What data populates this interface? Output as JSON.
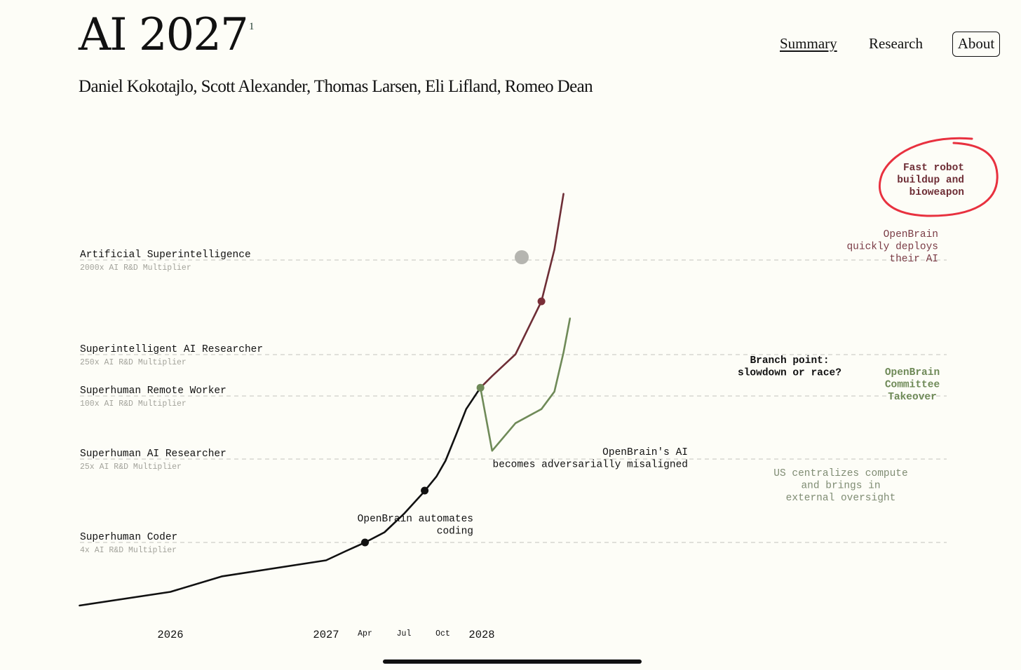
{
  "header": {
    "title": "AI 2027",
    "title_sup": "1",
    "authors": "Daniel Kokotajlo, Scott Alexander, Thomas Larsen, Eli Lifland, Romeo Dean"
  },
  "nav": {
    "summary": "Summary",
    "research": "Research",
    "about": "About"
  },
  "chart_data": {
    "type": "line",
    "x_unit": "months since 2026-01",
    "x_ticks": [
      {
        "label": "2026",
        "x": 0,
        "major": true
      },
      {
        "label": "2027",
        "x": 12,
        "major": true
      },
      {
        "label": "Apr",
        "x": 15,
        "major": false
      },
      {
        "label": "Jul",
        "x": 18,
        "major": false
      },
      {
        "label": "Oct",
        "x": 21,
        "major": false
      },
      {
        "label": "2028",
        "x": 24,
        "major": true
      }
    ],
    "milestones": [
      {
        "name": "Superhuman Coder",
        "sub": "4x AI R&D Multiplier",
        "y": 4
      },
      {
        "name": "Superhuman AI Researcher",
        "sub": "25x AI R&D Multiplier",
        "y": 25
      },
      {
        "name": "Superhuman Remote Worker",
        "sub": "100x AI R&D Multiplier",
        "y": 100
      },
      {
        "name": "Superintelligent AI Researcher",
        "sub": "250x AI R&D Multiplier",
        "y": 250
      },
      {
        "name": "Artificial Superintelligence",
        "sub": "2000x AI R&D Multiplier",
        "y": 2000
      }
    ],
    "series": [
      {
        "key": "main",
        "color": "#111111",
        "points": [
          [
            -7,
            1.0
          ],
          [
            0,
            1.35
          ],
          [
            4,
            1.9
          ],
          [
            12,
            2.7
          ],
          [
            13.5,
            3.3
          ],
          [
            15,
            4.0
          ],
          [
            16.5,
            5.0
          ],
          [
            18,
            7.5
          ],
          [
            19.5,
            12
          ],
          [
            20.5,
            17
          ],
          [
            21.2,
            24
          ],
          [
            22,
            42
          ],
          [
            22.8,
            75
          ],
          [
            23.9,
            120
          ]
        ]
      },
      {
        "key": "race",
        "color": "#6e2e36",
        "points": [
          [
            23.9,
            120
          ],
          [
            24.8,
            155
          ],
          [
            26.6,
            250
          ],
          [
            28.6,
            800
          ],
          [
            29.6,
            2500
          ],
          [
            30.3,
            8500
          ]
        ]
      },
      {
        "key": "slowdown",
        "color": "#6f8a58",
        "points": [
          [
            23.9,
            120
          ],
          [
            24.8,
            30
          ],
          [
            26.6,
            55
          ],
          [
            28.6,
            75
          ],
          [
            29.6,
            110
          ],
          [
            30.3,
            260
          ],
          [
            30.8,
            550
          ]
        ]
      }
    ],
    "markers": [
      {
        "x": 15,
        "y": 4.0,
        "color": "#111111"
      },
      {
        "x": 19.6,
        "y": 12.5,
        "color": "#111111"
      },
      {
        "x": 23.9,
        "y": 120,
        "color": "#6f8a58"
      },
      {
        "x": 28.6,
        "y": 800,
        "color": "#7a2e38"
      }
    ],
    "annotations": [
      {
        "lines": [
          "OpenBrain automates",
          "coding"
        ],
        "color": "#111111",
        "bold": false
      },
      {
        "lines": [
          "OpenBrain's AI",
          "becomes adversarially misaligned"
        ],
        "color": "#111111",
        "bold": false
      },
      {
        "lines": [
          "Branch point:",
          "slowdown or race?"
        ],
        "color": "#111111",
        "bold": true
      },
      {
        "lines": [
          "OpenBrain",
          "quickly deploys",
          "their AI"
        ],
        "color": "#7a3b45",
        "bold": false
      },
      {
        "lines": [
          "Fast robot",
          "buildup and",
          "bioweapon"
        ],
        "color": "#6e2e36",
        "bold": true
      },
      {
        "lines": [
          "OpenBrain",
          "Committee",
          "Takeover"
        ],
        "color": "#6f8a58",
        "bold": true
      },
      {
        "lines": [
          "US centralizes compute",
          "and brings in",
          "external oversight"
        ],
        "color": "#7f8c73",
        "bold": false
      }
    ]
  }
}
